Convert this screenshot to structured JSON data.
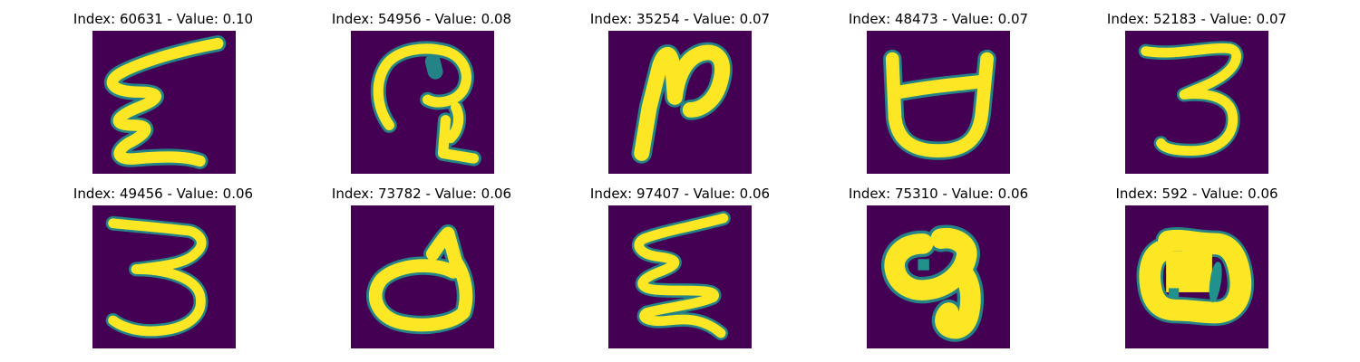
{
  "figure": {
    "colors": {
      "background": "#440154",
      "stroke": "#fde725",
      "edge": "#21918c"
    },
    "panels": [
      {
        "index_label": "Index: 60631",
        "value_label": "Value: 0.10",
        "title": "Index: 60631 - Value: 0.10"
      },
      {
        "index_label": "Index: 54956",
        "value_label": "Value: 0.08",
        "title": "Index: 54956 - Value: 0.08"
      },
      {
        "index_label": "Index: 35254",
        "value_label": "Value: 0.07",
        "title": "Index: 35254 - Value: 0.07"
      },
      {
        "index_label": "Index: 48473",
        "value_label": "Value: 0.07",
        "title": "Index: 48473 - Value: 0.07"
      },
      {
        "index_label": "Index: 52183",
        "value_label": "Value: 0.07",
        "title": "Index: 52183 - Value: 0.07"
      },
      {
        "index_label": "Index: 49456",
        "value_label": "Value: 0.06",
        "title": "Index: 49456 - Value: 0.06"
      },
      {
        "index_label": "Index: 73782",
        "value_label": "Value: 0.06",
        "title": "Index: 73782 - Value: 0.06"
      },
      {
        "index_label": "Index: 97407",
        "value_label": "Value: 0.06",
        "title": "Index: 97407 - Value: 0.06"
      },
      {
        "index_label": "Index: 75310",
        "value_label": "Value: 0.06",
        "title": "Index: 75310 - Value: 0.06"
      },
      {
        "index_label": "Index: 592",
        "value_label": "Value: 0.06",
        "title": "Index: 592 - Value: 0.06"
      }
    ]
  }
}
